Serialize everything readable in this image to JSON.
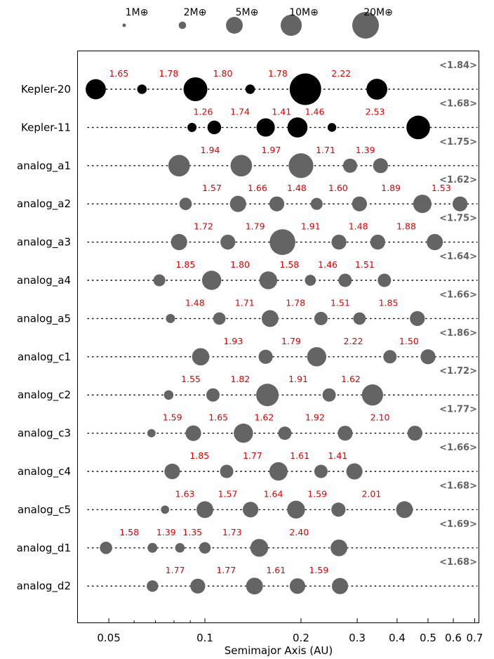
{
  "chart_data": {
    "type": "scatter",
    "xlabel": "Semimajor Axis (AU)",
    "x_scale": "log",
    "xlim": [
      0.04,
      0.72
    ],
    "x_ticks": [
      {
        "value": 0.05,
        "label": "0.05"
      },
      {
        "value": 0.1,
        "label": "0.1"
      },
      {
        "value": 0.2,
        "label": "0.2"
      },
      {
        "value": 0.3,
        "label": "0.3"
      },
      {
        "value": 0.4,
        "label": "0.4"
      },
      {
        "value": 0.5,
        "label": "0.5"
      },
      {
        "value": 0.6,
        "label": "0.6"
      },
      {
        "value": 0.7,
        "label": "0.7"
      }
    ],
    "colors": {
      "observed": "#000000",
      "analog": "#646464",
      "ratio": "#dd0000",
      "mean": "#646464"
    },
    "legend": [
      {
        "label": "1M⊕",
        "mass": 1
      },
      {
        "label": "2M⊕",
        "mass": 2
      },
      {
        "label": "5M⊕",
        "mass": 5
      },
      {
        "label": "10M⊕",
        "mass": 10
      },
      {
        "label": "20M⊕",
        "mass": 20
      }
    ],
    "systems": [
      {
        "name": "Kepler-20",
        "observed": true,
        "mean_ratio": "<1.84>",
        "planets": [
          {
            "a": 0.0455,
            "m": 8.7
          },
          {
            "a": 0.0635,
            "m": 0.9
          },
          {
            "a": 0.0934,
            "m": 14.3
          },
          {
            "a": 0.1386,
            "m": 0.9
          },
          {
            "a": 0.2065,
            "m": 33.0
          },
          {
            "a": 0.3458,
            "m": 9.6
          }
        ],
        "ratios": [
          "1.65",
          "1.78",
          "1.80",
          "1.78",
          "2.22"
        ]
      },
      {
        "name": "Kepler-11",
        "observed": true,
        "mean_ratio": "<1.68>",
        "planets": [
          {
            "a": 0.0911,
            "m": 0.8
          },
          {
            "a": 0.107,
            "m": 2.7
          },
          {
            "a": 0.155,
            "m": 6.5
          },
          {
            "a": 0.195,
            "m": 8.5
          },
          {
            "a": 0.25,
            "m": 0.7
          },
          {
            "a": 0.466,
            "m": 14.0
          }
        ],
        "ratios": [
          "1.26",
          "1.74",
          "1.41",
          "1.46",
          "2.53"
        ]
      },
      {
        "name": "analog_a1",
        "observed": false,
        "mean_ratio": "<1.75>",
        "planets": [
          {
            "a": 0.083,
            "m": 10.5
          },
          {
            "a": 0.13,
            "m": 10.5
          },
          {
            "a": 0.2,
            "m": 16.0
          },
          {
            "a": 0.285,
            "m": 3.0
          },
          {
            "a": 0.355,
            "m": 3.5
          }
        ],
        "ratios": [
          "1.94",
          "1.97",
          "1.71",
          "1.39"
        ]
      },
      {
        "name": "analog_a2",
        "observed": false,
        "mean_ratio": "<1.62>",
        "planets": [
          {
            "a": 0.087,
            "m": 2.0
          },
          {
            "a": 0.127,
            "m": 4.5
          },
          {
            "a": 0.168,
            "m": 3.5
          },
          {
            "a": 0.224,
            "m": 1.8
          },
          {
            "a": 0.305,
            "m": 3.5
          },
          {
            "a": 0.48,
            "m": 6.5
          },
          {
            "a": 0.63,
            "m": 3.5
          }
        ],
        "ratios": [
          "1.57",
          "1.66",
          "1.48",
          "1.60",
          "1.89",
          "1.53"
        ]
      },
      {
        "name": "analog_a3",
        "observed": false,
        "mean_ratio": "<1.75>",
        "planets": [
          {
            "a": 0.083,
            "m": 4.5
          },
          {
            "a": 0.118,
            "m": 3.5
          },
          {
            "a": 0.175,
            "m": 18.0
          },
          {
            "a": 0.263,
            "m": 3.5
          },
          {
            "a": 0.348,
            "m": 3.5
          },
          {
            "a": 0.525,
            "m": 4.5
          }
        ],
        "ratios": [
          "1.72",
          "1.79",
          "1.91",
          "1.48",
          "1.88"
        ]
      },
      {
        "name": "analog_a4",
        "observed": false,
        "mean_ratio": "<1.64>",
        "planets": [
          {
            "a": 0.072,
            "m": 1.8
          },
          {
            "a": 0.105,
            "m": 7.5
          },
          {
            "a": 0.158,
            "m": 6.0
          },
          {
            "a": 0.214,
            "m": 1.4
          },
          {
            "a": 0.275,
            "m": 2.5
          },
          {
            "a": 0.365,
            "m": 2.5
          }
        ],
        "ratios": [
          "1.85",
          "1.80",
          "1.58",
          "1.46",
          "1.51"
        ]
      },
      {
        "name": "analog_a5",
        "observed": false,
        "mean_ratio": "<1.66>",
        "planets": [
          {
            "a": 0.078,
            "m": 0.8
          },
          {
            "a": 0.111,
            "m": 2.0
          },
          {
            "a": 0.16,
            "m": 5.0
          },
          {
            "a": 0.231,
            "m": 2.5
          },
          {
            "a": 0.305,
            "m": 2.0
          },
          {
            "a": 0.463,
            "m": 3.5
          }
        ],
        "ratios": [
          "1.48",
          "1.71",
          "1.78",
          "1.51",
          "1.85"
        ]
      },
      {
        "name": "analog_c1",
        "observed": false,
        "mean_ratio": "<1.86>",
        "planets": [
          {
            "a": 0.097,
            "m": 5.5
          },
          {
            "a": 0.155,
            "m": 3.0
          },
          {
            "a": 0.224,
            "m": 7.5
          },
          {
            "a": 0.38,
            "m": 2.5
          },
          {
            "a": 0.5,
            "m": 3.5
          }
        ],
        "ratios": [
          "1.93",
          "1.79",
          "2.22",
          "1.50"
        ]
      },
      {
        "name": "analog_c2",
        "observed": false,
        "mean_ratio": "<1.72>",
        "planets": [
          {
            "a": 0.077,
            "m": 0.9
          },
          {
            "a": 0.106,
            "m": 2.5
          },
          {
            "a": 0.157,
            "m": 12.0
          },
          {
            "a": 0.245,
            "m": 2.5
          },
          {
            "a": 0.335,
            "m": 10.0
          }
        ],
        "ratios": [
          "1.55",
          "1.82",
          "1.91",
          "1.62"
        ]
      },
      {
        "name": "analog_c3",
        "observed": false,
        "mean_ratio": "<1.77>",
        "planets": [
          {
            "a": 0.068,
            "m": 0.6
          },
          {
            "a": 0.092,
            "m": 4.0
          },
          {
            "a": 0.132,
            "m": 7.5
          },
          {
            "a": 0.178,
            "m": 2.5
          },
          {
            "a": 0.275,
            "m": 3.5
          },
          {
            "a": 0.455,
            "m": 3.5
          }
        ],
        "ratios": [
          "1.59",
          "1.65",
          "1.62",
          "1.92",
          "2.10"
        ]
      },
      {
        "name": "analog_c4",
        "observed": false,
        "mean_ratio": "<1.66>",
        "planets": [
          {
            "a": 0.079,
            "m": 4.0
          },
          {
            "a": 0.117,
            "m": 2.5
          },
          {
            "a": 0.17,
            "m": 6.5
          },
          {
            "a": 0.231,
            "m": 2.5
          },
          {
            "a": 0.294,
            "m": 4.5
          }
        ],
        "ratios": [
          "1.85",
          "1.77",
          "1.61",
          "1.41"
        ]
      },
      {
        "name": "analog_c5",
        "observed": false,
        "mean_ratio": "<1.68>",
        "planets": [
          {
            "a": 0.075,
            "m": 0.6
          },
          {
            "a": 0.1,
            "m": 5.0
          },
          {
            "a": 0.139,
            "m": 4.0
          },
          {
            "a": 0.193,
            "m": 6.0
          },
          {
            "a": 0.262,
            "m": 3.0
          },
          {
            "a": 0.422,
            "m": 5.0
          }
        ],
        "ratios": [
          "1.63",
          "1.57",
          "1.64",
          "1.59",
          "2.01"
        ]
      },
      {
        "name": "analog_d1",
        "observed": false,
        "mean_ratio": "<1.69>",
        "planets": [
          {
            "a": 0.049,
            "m": 2.0
          },
          {
            "a": 0.0685,
            "m": 1.0
          },
          {
            "a": 0.0835,
            "m": 0.9
          },
          {
            "a": 0.1,
            "m": 1.6
          },
          {
            "a": 0.148,
            "m": 6.0
          },
          {
            "a": 0.263,
            "m": 5.0
          }
        ],
        "ratios": [
          "1.58",
          "1.39",
          "1.35",
          "1.73",
          "2.40"
        ]
      },
      {
        "name": "analog_d2",
        "observed": false,
        "mean_ratio": "<1.68>",
        "planets": [
          {
            "a": 0.0685,
            "m": 1.6
          },
          {
            "a": 0.095,
            "m": 3.5
          },
          {
            "a": 0.143,
            "m": 5.0
          },
          {
            "a": 0.195,
            "m": 4.0
          },
          {
            "a": 0.265,
            "m": 4.5
          }
        ],
        "ratios": [
          "1.77",
          "1.77",
          "1.61",
          "1.59"
        ]
      }
    ]
  }
}
